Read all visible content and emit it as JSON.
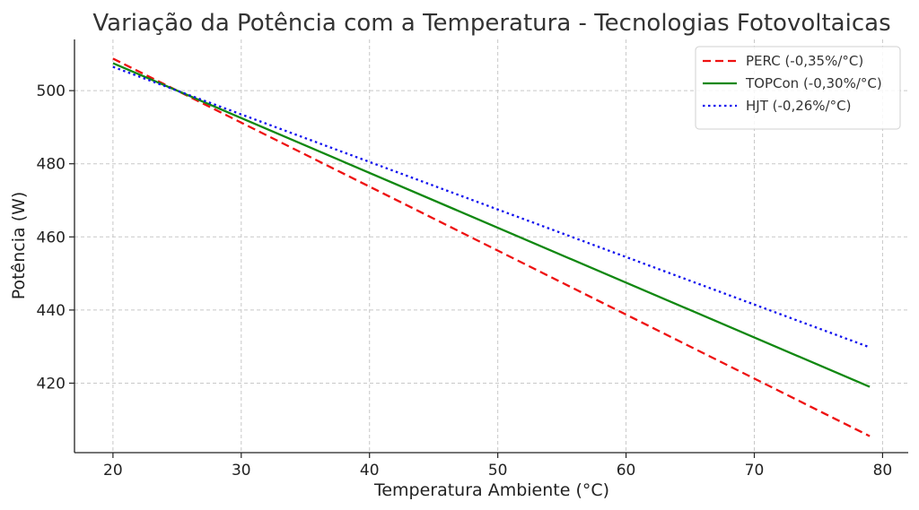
{
  "chart_data": {
    "type": "line",
    "title": "Variação da Potência com a Temperatura - Tecnologias Fotovoltaicas",
    "xlabel": "Temperatura Ambiente (°C)",
    "ylabel": "Potência (W)",
    "xlim": [
      17,
      82
    ],
    "ylim": [
      401,
      514
    ],
    "xticks": [
      20,
      30,
      40,
      50,
      60,
      70,
      80
    ],
    "yticks": [
      420,
      440,
      460,
      480,
      500
    ],
    "grid": true,
    "legend_position": "top-right",
    "series": [
      {
        "name": "PERC (-0,35%/°C)",
        "color": "#ee1111",
        "style": "dashed",
        "x": [
          20,
          79
        ],
        "y": [
          508.75,
          405.5
        ]
      },
      {
        "name": "TOPCon (-0,30%/°C)",
        "color": "#118811",
        "style": "solid",
        "x": [
          20,
          79
        ],
        "y": [
          507.5,
          419.0
        ]
      },
      {
        "name": "HJT (-0,26%/°C)",
        "color": "#1111ee",
        "style": "dotted",
        "x": [
          20,
          79
        ],
        "y": [
          506.5,
          429.8
        ]
      }
    ]
  }
}
